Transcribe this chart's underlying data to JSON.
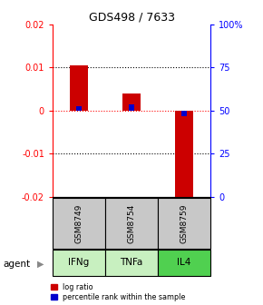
{
  "title": "GDS498 / 7633",
  "categories": [
    "IFNg",
    "TNFa",
    "IL4"
  ],
  "sample_ids": [
    "GSM8749",
    "GSM8754",
    "GSM8759"
  ],
  "log_ratios": [
    0.0105,
    0.004,
    -0.0205
  ],
  "percentile_ranks": [
    52.5,
    53.5,
    46.5
  ],
  "bar_color_red": "#cc0000",
  "bar_color_blue": "#0000cc",
  "ylim_left": [
    -0.02,
    0.02
  ],
  "ylim_right": [
    0,
    100
  ],
  "yticks_left": [
    -0.02,
    -0.01,
    0.0,
    0.01,
    0.02
  ],
  "yticks_right": [
    0,
    25,
    50,
    75,
    100
  ],
  "ytick_labels_left": [
    "-0.02",
    "-0.01",
    "0",
    "0.01",
    "0.02"
  ],
  "ytick_labels_right": [
    "0",
    "25",
    "50",
    "75",
    "100%"
  ],
  "dotted_lines_black": [
    -0.01,
    0.01
  ],
  "dotted_line_red": 0.0,
  "agent_label": "agent",
  "legend_log": "log ratio",
  "legend_pct": "percentile rank within the sample",
  "sample_cell_color": "#c8c8c8",
  "agent_colors": [
    "#c8f0c0",
    "#c8f0c0",
    "#50d050"
  ],
  "bar_width": 0.35,
  "blue_bar_width": 0.12
}
